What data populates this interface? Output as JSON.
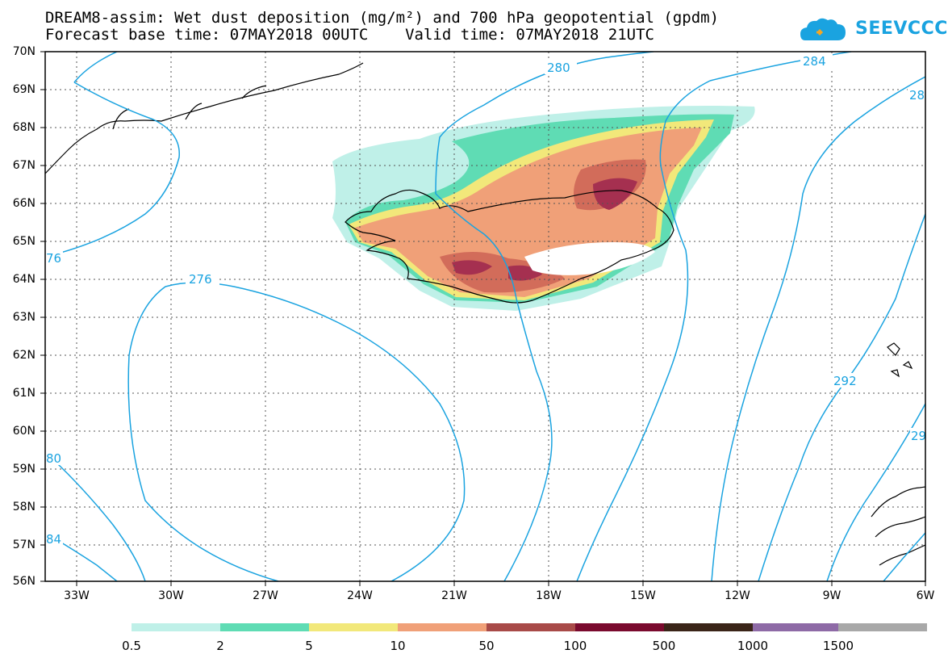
{
  "header": {
    "title_line1": "DREAM8-assim: Wet dust deposition (mg/m²) and 700 hPa geopotential (gpdm)",
    "title_line2": "Forecast base time: 07MAY2018 00UTC    Valid time: 07MAY2018 21UTC",
    "logo_text": "SEEVCCC"
  },
  "axes": {
    "lat_labels": [
      "70N",
      "69N",
      "68N",
      "67N",
      "66N",
      "65N",
      "64N",
      "63N",
      "62N",
      "61N",
      "60N",
      "59N",
      "58N",
      "57N",
      "56N"
    ],
    "lon_labels": [
      "33W",
      "30W",
      "27W",
      "24W",
      "21W",
      "18W",
      "15W",
      "12W",
      "9W",
      "6W"
    ]
  },
  "contour_labels": [
    "280",
    "284",
    "28",
    "76",
    "276",
    "292",
    "80",
    "84",
    "29"
  ],
  "legend": {
    "labels": [
      "0.5",
      "2",
      "5",
      "10",
      "50",
      "100",
      "500",
      "1000",
      "1500"
    ],
    "colors": [
      "#bff0e8",
      "#5fdcb4",
      "#f2e87a",
      "#f0a078",
      "#d26c5a",
      "#a53050",
      "#7a0a2e",
      "#3a2418",
      "#8e6aa6",
      "#a8a8a8"
    ]
  },
  "colors": {
    "contour": "#1aa3e0",
    "coast": "#000000",
    "grid": "#555555"
  }
}
